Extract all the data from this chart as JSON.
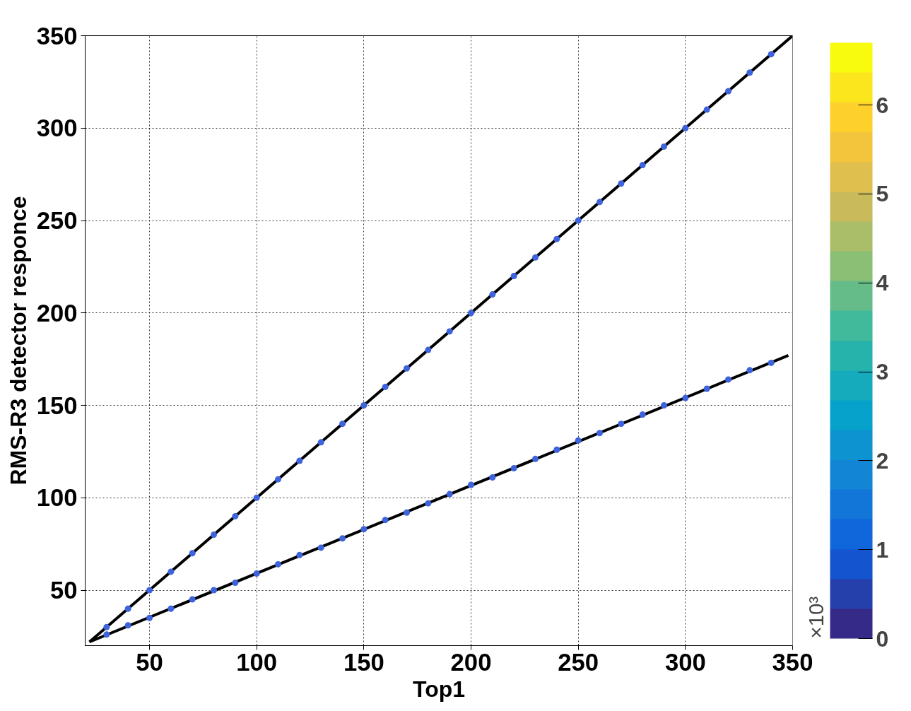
{
  "chart_data": {
    "type": "scatter",
    "xlabel": "Top1",
    "ylabel": "RMS-R3 detector responce",
    "clabel": "×10³",
    "xlim": [
      20,
      350
    ],
    "ylim": [
      20,
      350
    ],
    "xticks": [
      50,
      100,
      150,
      200,
      250,
      300,
      350
    ],
    "yticks": [
      50,
      100,
      150,
      200,
      250,
      300,
      350
    ],
    "clim": [
      0,
      6.7
    ],
    "cticks": [
      0,
      1,
      2,
      3,
      4,
      5,
      6
    ],
    "grid": true,
    "series": [
      {
        "color": "#3d63dd",
        "marker": "circle",
        "x": [
          30,
          40,
          50,
          60,
          70,
          80,
          90,
          100,
          110,
          120,
          130,
          140,
          150,
          160,
          170,
          180,
          190,
          200,
          210,
          220,
          230,
          240,
          250,
          260,
          270,
          280,
          290,
          300,
          310,
          320,
          330,
          340
        ],
        "values": [
          30,
          40,
          50,
          60,
          70,
          80,
          90,
          100,
          110,
          120,
          130,
          140,
          150,
          160,
          170,
          180,
          190,
          200,
          210,
          220,
          230,
          240,
          250,
          260,
          270,
          280,
          290,
          300,
          310,
          320,
          330,
          340
        ]
      },
      {
        "color": "#3d63dd",
        "marker": "circle",
        "x": [
          30,
          40,
          50,
          60,
          70,
          80,
          90,
          100,
          110,
          120,
          130,
          140,
          150,
          160,
          170,
          180,
          190,
          200,
          210,
          220,
          230,
          240,
          250,
          260,
          270,
          280,
          290,
          300,
          310,
          320,
          330,
          340
        ],
        "values": [
          26,
          31,
          35,
          40,
          45,
          50,
          54,
          59,
          64,
          69,
          73,
          78,
          83,
          88,
          92,
          97,
          102,
          107,
          111,
          116,
          121,
          126,
          131,
          135,
          140,
          145,
          150,
          154,
          159,
          164,
          169,
          173
        ]
      },
      {
        "type": "line",
        "marker": "none",
        "color": "#000000",
        "x": [
          22,
          350
        ],
        "values": [
          22,
          350
        ]
      },
      {
        "type": "line",
        "marker": "none",
        "color": "#000000",
        "x": [
          22,
          348
        ],
        "values": [
          22,
          177
        ]
      }
    ]
  }
}
